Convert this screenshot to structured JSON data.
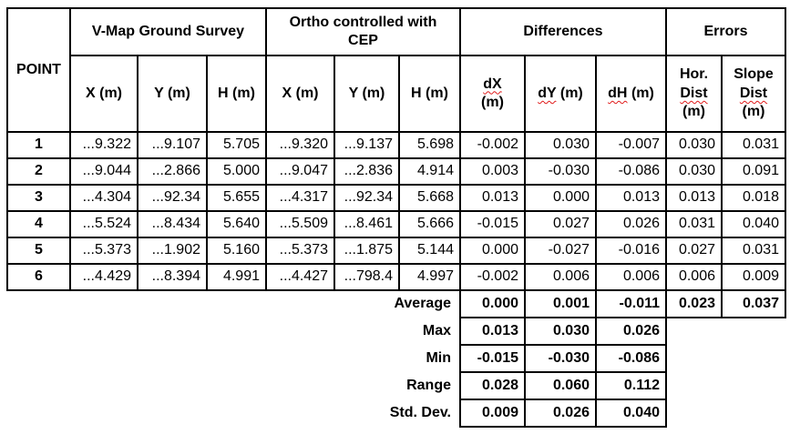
{
  "chart_data": {
    "type": "table",
    "corner_header": "POINT",
    "group_headers": [
      "V-Map Ground Survey",
      "Ortho controlled with CEP",
      "Differences",
      "Errors"
    ],
    "columns": [
      "POINT",
      "X (m)",
      "Y (m)",
      "H (m)",
      "X (m)",
      "Y (m)",
      "H (m)",
      "dX (m)",
      "dY (m)",
      "dH (m)",
      "Hor. Dist (m)",
      "Slope Dist (m)"
    ],
    "rows": [
      [
        "1",
        "...9.322",
        "...9.107",
        "5.705",
        "...9.320",
        "...9.137",
        "5.698",
        "-0.002",
        "0.030",
        "-0.007",
        "0.030",
        "0.031"
      ],
      [
        "2",
        "...9.044",
        "...2.866",
        "5.000",
        "...9.047",
        "...2.836",
        "4.914",
        "0.003",
        "-0.030",
        "-0.086",
        "0.030",
        "0.091"
      ],
      [
        "3",
        "...4.304",
        "...92.34",
        "5.655",
        "...4.317",
        "...92.34",
        "5.668",
        "0.013",
        "0.000",
        "0.013",
        "0.013",
        "0.018"
      ],
      [
        "4",
        "...5.524",
        "...8.434",
        "5.640",
        "...5.509",
        "...8.461",
        "5.666",
        "-0.015",
        "0.027",
        "0.026",
        "0.031",
        "0.040"
      ],
      [
        "5",
        "...5.373",
        "...1.902",
        "5.160",
        "...5.373",
        "...1.875",
        "5.144",
        "0.000",
        "-0.027",
        "-0.016",
        "0.027",
        "0.031"
      ],
      [
        "6",
        "...4.429",
        "...8.394",
        "4.991",
        "...4.427",
        "...798.4",
        "4.997",
        "-0.002",
        "0.006",
        "0.006",
        "0.006",
        "0.009"
      ]
    ],
    "summary": [
      {
        "label": "Average",
        "values": [
          "0.000",
          "0.001",
          "-0.011",
          "0.023",
          "0.037"
        ]
      },
      {
        "label": "Max",
        "values": [
          "0.013",
          "0.030",
          "0.026"
        ]
      },
      {
        "label": "Min",
        "values": [
          "-0.015",
          "-0.030",
          "-0.086"
        ]
      },
      {
        "label": "Range",
        "values": [
          "0.028",
          "0.060",
          "0.112"
        ]
      },
      {
        "label": "Std. Dev.",
        "values": [
          "0.009",
          "0.026",
          "0.040"
        ]
      }
    ]
  },
  "header_parts": {
    "vmap": "V-Map Ground Survey",
    "ortho_line1": "Ortho controlled with",
    "ortho_line2": "CEP",
    "differences": "Differences",
    "errors": "Errors",
    "x": "X (m)",
    "y": "Y (m)",
    "h": "H (m)",
    "dx": "dX",
    "dy": "dY",
    "dh": "dH",
    "unit": "(m)",
    "hor1": "Hor.",
    "dist": "Dist",
    "slope1": "Slope"
  },
  "colors": {
    "text": "#000000",
    "border": "#000000",
    "background": "#ffffff",
    "spellcheck_squiggle": "#e01b1b"
  }
}
